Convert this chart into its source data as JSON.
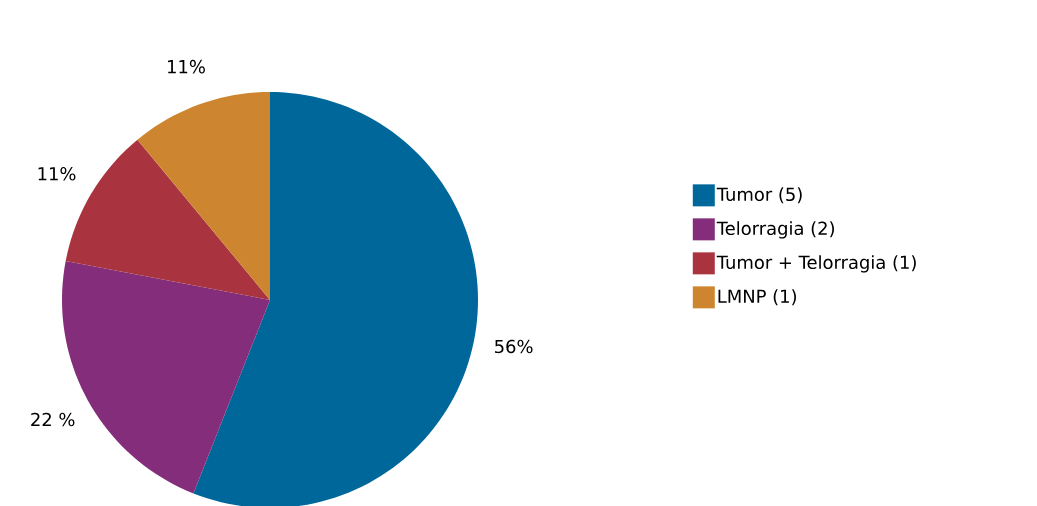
{
  "chart_data": {
    "type": "pie",
    "categories": [
      "Tumor (5)",
      "Telorragia (2)",
      "Tumor + Telorragia (1)",
      "LMNP (1)"
    ],
    "values": [
      56,
      22,
      11,
      11
    ],
    "colors": [
      "#00679a",
      "#842d7a",
      "#a93440",
      "#cd862f"
    ],
    "value_labels": [
      "56%",
      "22 %",
      "11%",
      "11%"
    ],
    "legend": "right"
  }
}
